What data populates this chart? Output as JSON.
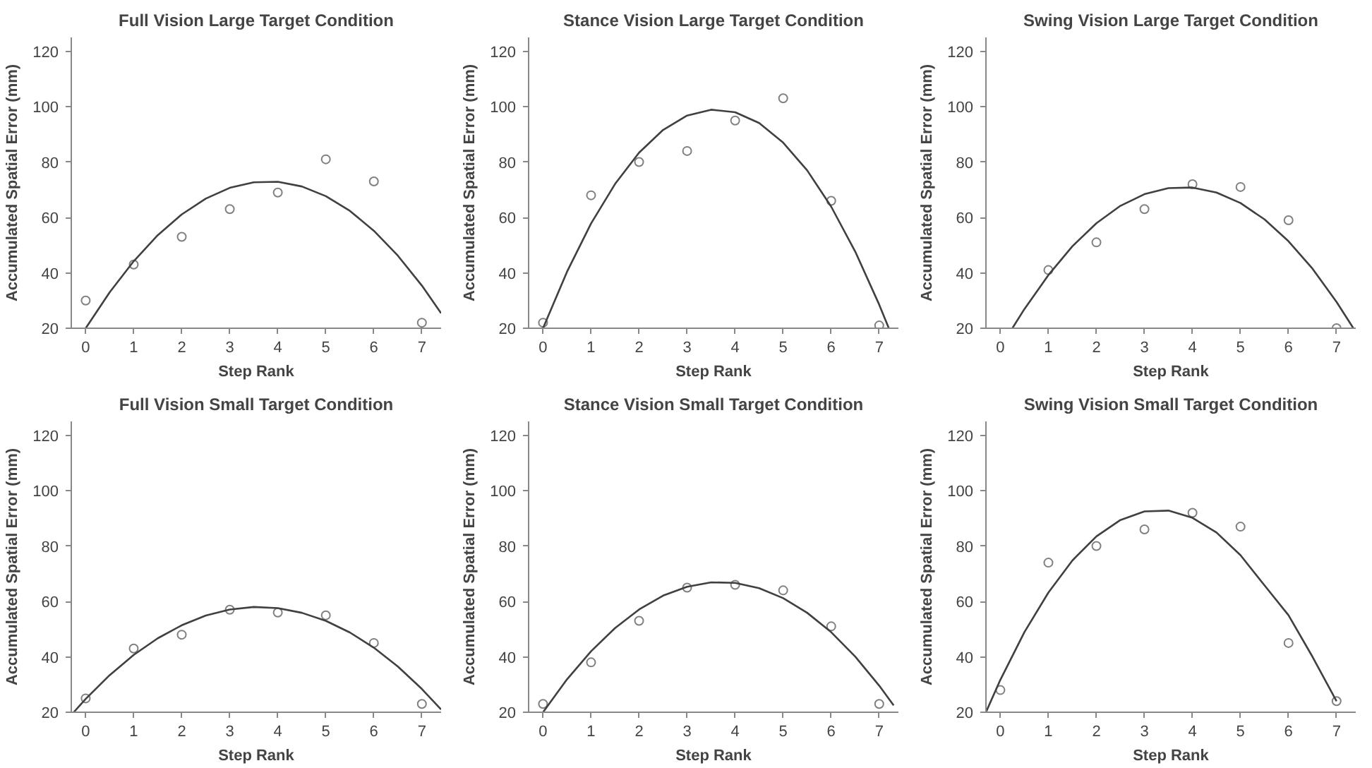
{
  "chart_data": [
    {
      "type": "scatter",
      "title": "Full Vision Large Target Condition",
      "xlabel": "Step Rank",
      "ylabel": "Accumulated Spatial Error (mm)",
      "xlim": [
        -0.3,
        7.4
      ],
      "ylim": [
        20,
        125
      ],
      "xticks": [
        0,
        1,
        2,
        3,
        4,
        5,
        6,
        7
      ],
      "yticks": [
        20,
        40,
        60,
        80,
        100,
        120
      ],
      "grid": false,
      "series": [
        {
          "type": "scatter",
          "marker": "circle",
          "color": "#808080",
          "x": [
            0,
            1,
            2,
            3,
            4,
            5,
            6,
            7
          ],
          "values": [
            30,
            43,
            53,
            63,
            69,
            81,
            73,
            22
          ]
        },
        {
          "type": "line",
          "marker": "none",
          "color": "#404040",
          "x": [
            0,
            0.5,
            1,
            1.5,
            2,
            2.5,
            3,
            3.5,
            4,
            4.5,
            5,
            5.5,
            6,
            6.5,
            7,
            7.4
          ],
          "values": [
            20,
            33,
            44.2,
            53.6,
            61.1,
            66.8,
            70.7,
            72.7,
            72.9,
            71.2,
            67.7,
            62.4,
            55.2,
            46.2,
            35.4,
            25.4
          ]
        }
      ]
    },
    {
      "type": "scatter",
      "title": "Stance Vision Large Target Condition",
      "xlabel": "Step Rank",
      "ylabel": "Accumulated Spatial Error (mm)",
      "xlim": [
        -0.3,
        7.4
      ],
      "ylim": [
        20,
        125
      ],
      "xticks": [
        0,
        1,
        2,
        3,
        4,
        5,
        6,
        7
      ],
      "yticks": [
        20,
        40,
        60,
        80,
        100,
        120
      ],
      "grid": false,
      "series": [
        {
          "type": "scatter",
          "marker": "circle",
          "color": "#808080",
          "x": [
            0,
            1,
            2,
            3,
            4,
            5,
            6,
            7
          ],
          "values": [
            22,
            68,
            80,
            84,
            95,
            103,
            66,
            21
          ]
        },
        {
          "type": "line",
          "marker": "none",
          "color": "#404040",
          "x": [
            0,
            0.5,
            1,
            1.5,
            2,
            2.5,
            3,
            3.5,
            4,
            4.5,
            5,
            5.5,
            6,
            6.5,
            7,
            7.2
          ],
          "values": [
            20,
            40.4,
            57.8,
            72.1,
            83.4,
            91.6,
            96.8,
            98.9,
            98,
            94.1,
            87,
            77,
            63.9,
            47.7,
            28.5,
            20
          ]
        }
      ]
    },
    {
      "type": "scatter",
      "title": "Swing Vision Large Target Condition",
      "xlabel": "Step Rank",
      "ylabel": "Accumulated Spatial Error (mm)",
      "xlim": [
        -0.3,
        7.4
      ],
      "ylim": [
        20,
        125
      ],
      "xticks": [
        0,
        1,
        2,
        3,
        4,
        5,
        6,
        7
      ],
      "yticks": [
        20,
        40,
        60,
        80,
        100,
        120
      ],
      "grid": false,
      "series": [
        {
          "type": "scatter",
          "marker": "circle",
          "color": "#808080",
          "x": [
            1,
            2,
            3,
            4,
            5,
            6,
            7
          ],
          "values": [
            41,
            51,
            63,
            72,
            71,
            59,
            20
          ]
        },
        {
          "type": "line",
          "marker": "none",
          "color": "#404040",
          "x": [
            0.25,
            0.5,
            1,
            1.5,
            2,
            2.5,
            3,
            3.5,
            4,
            4.5,
            5,
            5.5,
            6,
            6.5,
            7,
            7.35
          ],
          "values": [
            20,
            26.9,
            39.2,
            49.6,
            57.9,
            64.2,
            68.4,
            70.6,
            70.8,
            69,
            65.2,
            59.3,
            51.4,
            41.5,
            29.5,
            20
          ]
        }
      ]
    },
    {
      "type": "scatter",
      "title": "Full Vision Small Target Condition",
      "xlabel": "Step Rank",
      "ylabel": "Accumulated Spatial Error (mm)",
      "xlim": [
        -0.3,
        7.4
      ],
      "ylim": [
        20,
        125
      ],
      "xticks": [
        0,
        1,
        2,
        3,
        4,
        5,
        6,
        7
      ],
      "yticks": [
        20,
        40,
        60,
        80,
        100,
        120
      ],
      "grid": false,
      "series": [
        {
          "type": "scatter",
          "marker": "circle",
          "color": "#808080",
          "x": [
            0,
            1,
            2,
            3,
            4,
            5,
            6,
            7
          ],
          "values": [
            25,
            43,
            48,
            57,
            56,
            55,
            45,
            23
          ]
        },
        {
          "type": "line",
          "marker": "none",
          "color": "#404040",
          "x": [
            -0.25,
            0,
            0.5,
            1,
            1.5,
            2,
            2.5,
            3,
            3.5,
            4,
            4.5,
            5,
            5.5,
            6,
            6.5,
            7,
            7.4
          ],
          "values": [
            20,
            24.8,
            33.4,
            40.7,
            46.7,
            51.4,
            54.9,
            57.1,
            58,
            57.6,
            55.9,
            53,
            48.8,
            43.3,
            36.5,
            28.4,
            21
          ]
        }
      ]
    },
    {
      "type": "scatter",
      "title": "Stance Vision Small Target Condition",
      "xlabel": "Step Rank",
      "ylabel": "Accumulated Spatial Error (mm)",
      "xlim": [
        -0.3,
        7.4
      ],
      "ylim": [
        20,
        125
      ],
      "xticks": [
        0,
        1,
        2,
        3,
        4,
        5,
        6,
        7
      ],
      "yticks": [
        20,
        40,
        60,
        80,
        100,
        120
      ],
      "grid": false,
      "series": [
        {
          "type": "scatter",
          "marker": "circle",
          "color": "#808080",
          "x": [
            0,
            1,
            2,
            3,
            4,
            5,
            6,
            7
          ],
          "values": [
            23,
            38,
            53,
            65,
            66,
            64,
            51,
            23
          ]
        },
        {
          "type": "line",
          "marker": "none",
          "color": "#404040",
          "x": [
            0,
            0.5,
            1,
            1.5,
            2,
            2.5,
            3,
            3.5,
            4,
            4.5,
            5,
            5.5,
            6,
            6.5,
            7,
            7.3
          ],
          "values": [
            20,
            31.9,
            42,
            50.4,
            57.1,
            62.1,
            65.3,
            66.9,
            66.7,
            64.8,
            61.2,
            55.9,
            48.9,
            40.1,
            29.6,
            22.5
          ]
        }
      ]
    },
    {
      "type": "scatter",
      "title": "Swing Vision Small Target Condition",
      "xlabel": "Step Rank",
      "ylabel": "Accumulated Spatial Error (mm)",
      "xlim": [
        -0.3,
        7.4
      ],
      "ylim": [
        20,
        125
      ],
      "xticks": [
        0,
        1,
        2,
        3,
        4,
        5,
        6,
        7
      ],
      "yticks": [
        20,
        40,
        60,
        80,
        100,
        120
      ],
      "grid": false,
      "series": [
        {
          "type": "scatter",
          "marker": "circle",
          "color": "#808080",
          "x": [
            0,
            1,
            2,
            3,
            4,
            5,
            6,
            7
          ],
          "values": [
            28,
            74,
            80,
            86,
            92,
            87,
            45,
            24
          ]
        },
        {
          "type": "line",
          "marker": "none",
          "color": "#404040",
          "x": [
            -0.3,
            0,
            0.5,
            1,
            1.5,
            2,
            2.5,
            3,
            3.5,
            4,
            4.5,
            5,
            5.5,
            6,
            6.5,
            7
          ],
          "values": [
            20,
            31.7,
            48.9,
            63.2,
            74.8,
            83.5,
            89.4,
            92.5,
            92.8,
            90.2,
            84.9,
            76.7,
            65.8,
            55,
            40,
            24
          ]
        }
      ]
    }
  ]
}
